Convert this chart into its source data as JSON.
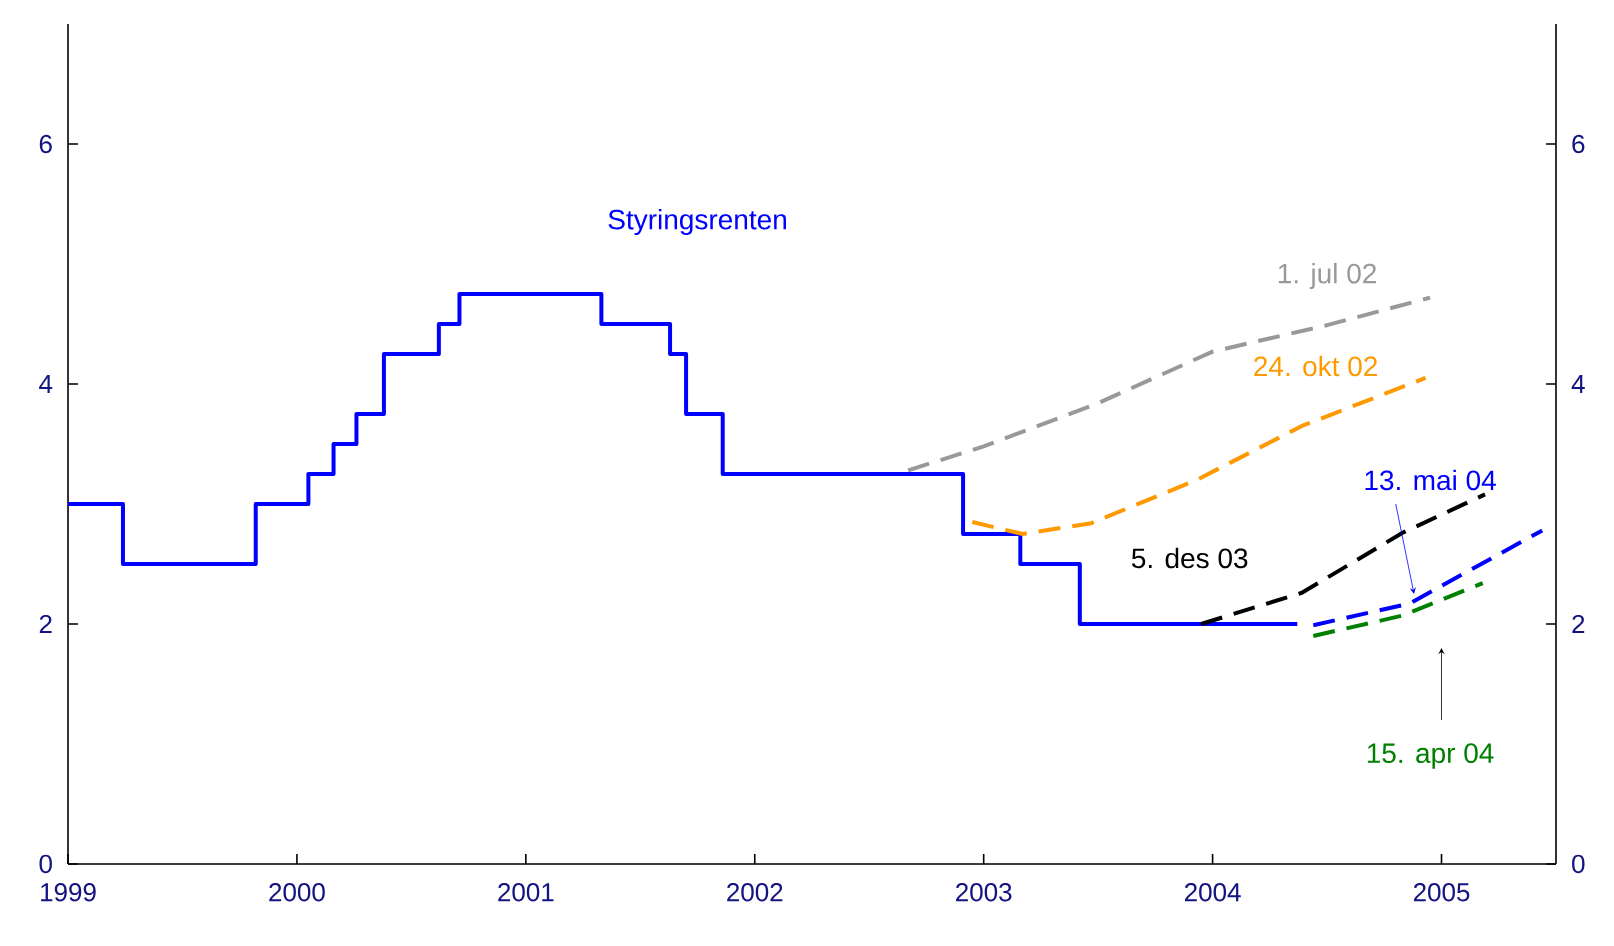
{
  "chart_data": {
    "type": "line",
    "xlim": [
      1999,
      2005.5
    ],
    "xticks": [
      1999,
      2000,
      2001,
      2002,
      2003,
      2004,
      2005
    ],
    "ylim": [
      0,
      7
    ],
    "yticks": [
      0,
      2,
      4,
      6
    ],
    "y2lim": [
      0,
      7
    ],
    "y2ticks": [
      0,
      2,
      4,
      6
    ],
    "series": [
      {
        "name": "Styringsrenten",
        "type": "step",
        "color": "#0000ff",
        "line_style": "solid",
        "x": [
          1999,
          1999.24,
          1999.82,
          2000.05,
          2000.16,
          2000.26,
          2000.38,
          2000.62,
          2000.71,
          2001.33,
          2001.63,
          2001.7,
          2001.86,
          2002.91,
          2003.16,
          2003.42,
          2004.37
        ],
        "values": [
          3,
          2.5,
          3,
          3.25,
          3.5,
          3.75,
          4.25,
          4.5,
          4.75,
          4.5,
          4.25,
          3.75,
          3.25,
          2.75,
          2.5,
          2,
          2
        ]
      },
      {
        "name": "1. jul 02",
        "color": "#999999",
        "line_style": "dashed",
        "x": [
          2002.67,
          2003.0,
          2003.5,
          2004.0,
          2004.5,
          2004.95
        ],
        "values": [
          3.28,
          3.48,
          3.84,
          4.27,
          4.49,
          4.72
        ]
      },
      {
        "name": "24. okt 02",
        "color": "#ff9900",
        "line_style": "dashed",
        "x": [
          2002.95,
          2003.17,
          2003.47,
          2003.93,
          2004.39,
          2004.93
        ],
        "values": [
          2.85,
          2.75,
          2.84,
          3.2,
          3.65,
          4.05
        ]
      },
      {
        "name": "5. des 03",
        "color": "#000000",
        "line_style": "dashed",
        "x": [
          2003.95,
          2004.39,
          2004.83,
          2005.19
        ],
        "values": [
          2.0,
          2.26,
          2.76,
          3.08
        ]
      },
      {
        "name": "13. mai 04",
        "color": "#0000ff",
        "line_style": "dashed",
        "x": [
          2004.44,
          2004.86,
          2005.44
        ],
        "values": [
          1.99,
          2.17,
          2.78
        ]
      },
      {
        "name": "15. apr 04",
        "color": "#008000",
        "line_style": "dashed",
        "x": [
          2004.44,
          2004.83,
          2005.18
        ],
        "values": [
          1.9,
          2.07,
          2.34
        ]
      }
    ]
  }
}
